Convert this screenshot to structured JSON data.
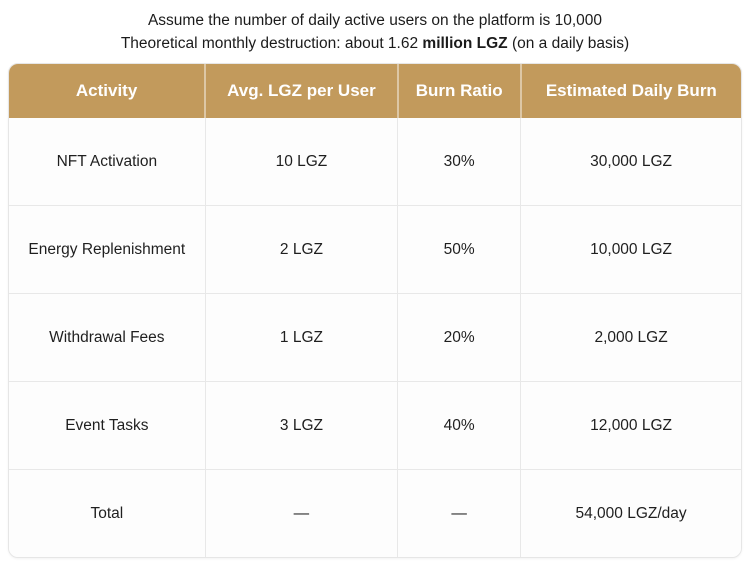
{
  "intro": {
    "line1": "Assume the number of daily active users on the platform is 10,000",
    "line2_prefix": "Theoretical monthly destruction: about 1.62 ",
    "line2_bold": "million LGZ",
    "line2_suffix": " (on a daily basis)"
  },
  "colors": {
    "header_bg": "#c29a5c",
    "header_text": "#ffffff",
    "cell_border": "#e8e8e8",
    "body_bg": "#fdfdfd"
  },
  "table": {
    "columns": {
      "activity": "Activity",
      "avg": "Avg. LGZ per User",
      "ratio": "Burn Ratio",
      "burn": "Estimated Daily Burn"
    },
    "rows": [
      {
        "activity": "NFT Activation",
        "avg": "10 LGZ",
        "ratio": "30%",
        "burn": "30,000 LGZ"
      },
      {
        "activity": "Energy Replenishment",
        "avg": "2 LGZ",
        "ratio": "50%",
        "burn": "10,000 LGZ"
      },
      {
        "activity": "Withdrawal Fees",
        "avg": "1 LGZ",
        "ratio": "20%",
        "burn": "2,000 LGZ"
      },
      {
        "activity": "Event Tasks",
        "avg": "3 LGZ",
        "ratio": "40%",
        "burn": "12,000 LGZ"
      },
      {
        "activity": "Total",
        "avg": "—",
        "ratio": "—",
        "burn": "54,000 LGZ/day"
      }
    ]
  }
}
